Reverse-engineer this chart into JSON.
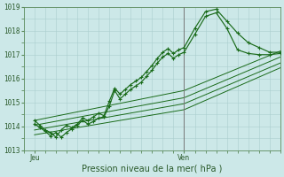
{
  "xlabel": "Pression niveau de la mer( hPa )",
  "bg_color": "#cce8e8",
  "grid_color": "#aacece",
  "line_color": "#1a6b1a",
  "axis_color": "#5a8a5a",
  "text_color": "#2a5a2a",
  "vline_color": "#777777",
  "ylim": [
    1013,
    1019
  ],
  "yticks": [
    1013,
    1014,
    1015,
    1016,
    1017,
    1018,
    1019
  ],
  "xlim": [
    0,
    48
  ],
  "x_jeu": 2,
  "x_ven": 30,
  "wiggly1_x": [
    2,
    3,
    4,
    5,
    6,
    7,
    8,
    9,
    10,
    11,
    12,
    13,
    14,
    15,
    16,
    17,
    18,
    19,
    20,
    21,
    22,
    23,
    24,
    25,
    26,
    27,
    28,
    29,
    30,
    32,
    34,
    36,
    38,
    40,
    42,
    44,
    46,
    48
  ],
  "wiggly1_y": [
    1014.25,
    1014.05,
    1013.85,
    1013.75,
    1013.55,
    1013.85,
    1014.05,
    1013.95,
    1014.1,
    1014.35,
    1014.25,
    1014.4,
    1014.55,
    1014.45,
    1015.05,
    1015.6,
    1015.35,
    1015.55,
    1015.75,
    1015.9,
    1016.05,
    1016.3,
    1016.55,
    1016.85,
    1017.1,
    1017.25,
    1017.05,
    1017.2,
    1017.3,
    1018.1,
    1018.8,
    1018.9,
    1018.4,
    1017.9,
    1017.5,
    1017.3,
    1017.1,
    1017.1
  ],
  "wiggly2_x": [
    2,
    3,
    4,
    5,
    6,
    7,
    8,
    9,
    10,
    11,
    12,
    13,
    14,
    15,
    16,
    17,
    18,
    19,
    20,
    21,
    22,
    23,
    24,
    25,
    26,
    27,
    28,
    29,
    30,
    32,
    34,
    36,
    38,
    40,
    42,
    44,
    46,
    48
  ],
  "wiggly2_y": [
    1014.1,
    1013.95,
    1013.8,
    1013.6,
    1013.75,
    1013.55,
    1013.75,
    1013.9,
    1014.05,
    1014.25,
    1014.1,
    1014.2,
    1014.35,
    1014.4,
    1014.85,
    1015.5,
    1015.15,
    1015.35,
    1015.55,
    1015.7,
    1015.85,
    1016.1,
    1016.35,
    1016.65,
    1016.9,
    1017.05,
    1016.85,
    1017.0,
    1017.1,
    1017.85,
    1018.6,
    1018.75,
    1018.1,
    1017.2,
    1017.05,
    1017.0,
    1017.0,
    1017.05
  ],
  "straight_lines": [
    {
      "x": [
        2,
        30,
        48
      ],
      "y": [
        1014.25,
        1015.5,
        1017.15
      ]
    },
    {
      "x": [
        2,
        30,
        48
      ],
      "y": [
        1014.05,
        1015.2,
        1016.9
      ]
    },
    {
      "x": [
        2,
        30,
        48
      ],
      "y": [
        1013.85,
        1014.95,
        1016.65
      ]
    },
    {
      "x": [
        2,
        30,
        48
      ],
      "y": [
        1013.65,
        1014.7,
        1016.45
      ]
    }
  ]
}
